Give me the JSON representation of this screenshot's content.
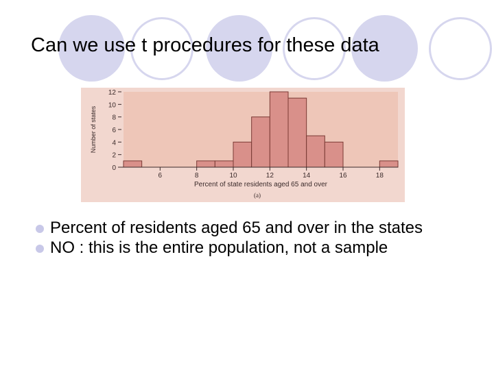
{
  "slide": {
    "title": "Can we use t procedures for these data",
    "bullets": [
      "Percent of residents aged 65 and over in the states",
      "NO : this is the entire population, not a sample"
    ]
  },
  "colors": {
    "panel": "#f2d7cf",
    "plot_area": "#eec6b8",
    "bar_fill": "#d9908a",
    "bar_stroke": "#7a3a34",
    "text": "#3a2a2a",
    "bullet": "#c8c8e8",
    "decor_circles": "#d6d6ee"
  },
  "chart_data": {
    "type": "bar",
    "xlabel": "Percent of state residents aged 65 and over",
    "ylabel": "Number of states",
    "caption": "(a)",
    "xlim": [
      4,
      19
    ],
    "ylim": [
      0,
      12
    ],
    "xticks": [
      6,
      8,
      10,
      12,
      14,
      16,
      18
    ],
    "yticks": [
      0,
      2,
      4,
      6,
      8,
      10,
      12
    ],
    "bins": [
      {
        "x0": 4,
        "x1": 5,
        "count": 1
      },
      {
        "x0": 5,
        "x1": 6,
        "count": 0
      },
      {
        "x0": 6,
        "x1": 7,
        "count": 0
      },
      {
        "x0": 7,
        "x1": 8,
        "count": 0
      },
      {
        "x0": 8,
        "x1": 9,
        "count": 1
      },
      {
        "x0": 9,
        "x1": 10,
        "count": 1
      },
      {
        "x0": 10,
        "x1": 11,
        "count": 4
      },
      {
        "x0": 11,
        "x1": 12,
        "count": 8
      },
      {
        "x0": 12,
        "x1": 13,
        "count": 12
      },
      {
        "x0": 13,
        "x1": 14,
        "count": 11
      },
      {
        "x0": 14,
        "x1": 15,
        "count": 5
      },
      {
        "x0": 15,
        "x1": 16,
        "count": 4
      },
      {
        "x0": 16,
        "x1": 17,
        "count": 0
      },
      {
        "x0": 17,
        "x1": 18,
        "count": 0
      },
      {
        "x0": 18,
        "x1": 19,
        "count": 1
      }
    ]
  }
}
